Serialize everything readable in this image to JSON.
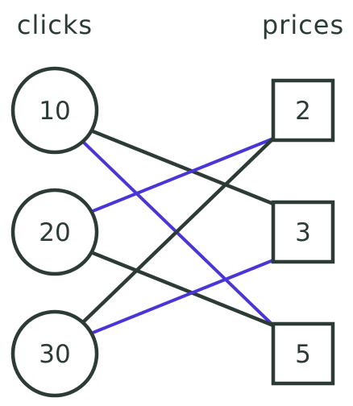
{
  "headings": {
    "left": "clicks",
    "right": "prices"
  },
  "left_nodes": [
    {
      "id": "c10",
      "label": "10"
    },
    {
      "id": "c20",
      "label": "20"
    },
    {
      "id": "c30",
      "label": "30"
    }
  ],
  "right_nodes": [
    {
      "id": "p2",
      "label": "2"
    },
    {
      "id": "p3",
      "label": "3"
    },
    {
      "id": "p5",
      "label": "5"
    }
  ],
  "edges": [
    {
      "from": "c10",
      "to": "p3",
      "color": "dark"
    },
    {
      "from": "c10",
      "to": "p5",
      "color": "blue"
    },
    {
      "from": "c20",
      "to": "p2",
      "color": "blue"
    },
    {
      "from": "c20",
      "to": "p5",
      "color": "dark"
    },
    {
      "from": "c30",
      "to": "p2",
      "color": "dark"
    },
    {
      "from": "c30",
      "to": "p3",
      "color": "blue"
    }
  ],
  "colors": {
    "dark": "#2d3b37",
    "blue": "#4a36d6",
    "background": "#ffffff"
  }
}
